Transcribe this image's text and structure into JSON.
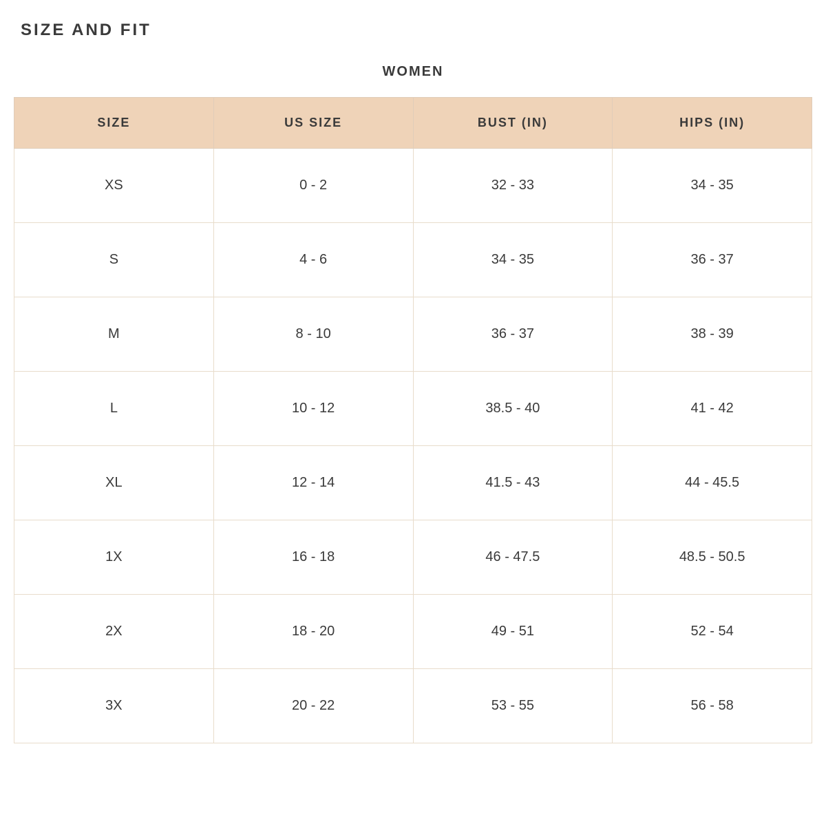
{
  "title": "SIZE AND FIT",
  "subtitle": "WOMEN",
  "table": {
    "type": "table",
    "columns": [
      "SIZE",
      "US SIZE",
      "BUST (IN)",
      "HIPS (IN)"
    ],
    "rows": [
      [
        "XS",
        "0 - 2",
        "32 - 33",
        "34 - 35"
      ],
      [
        "S",
        "4 - 6",
        "34 - 35",
        "36 - 37"
      ],
      [
        "M",
        "8 - 10",
        "36 - 37",
        "38 - 39"
      ],
      [
        "L",
        "10 - 12",
        "38.5 - 40",
        "41 - 42"
      ],
      [
        "XL",
        "12 - 14",
        "41.5 - 43",
        "44 - 45.5"
      ],
      [
        "1X",
        "16 - 18",
        "46 - 47.5",
        "48.5 - 50.5"
      ],
      [
        "2X",
        "18 - 20",
        "49 - 51",
        "52 - 54"
      ],
      [
        "3X",
        "20 - 22",
        "53 - 55",
        "56 - 58"
      ]
    ],
    "header_bg_color": "#efd3b8",
    "header_text_color": "#3a3a3a",
    "header_fontsize": 18,
    "header_fontweight": 700,
    "cell_bg_color": "#ffffff",
    "cell_text_color": "#3a3a3a",
    "cell_fontsize": 20,
    "border_color": "#e8dccb",
    "title_fontsize": 24,
    "title_color": "#3a3a3a",
    "subtitle_fontsize": 20,
    "subtitle_color": "#3a3a3a"
  }
}
